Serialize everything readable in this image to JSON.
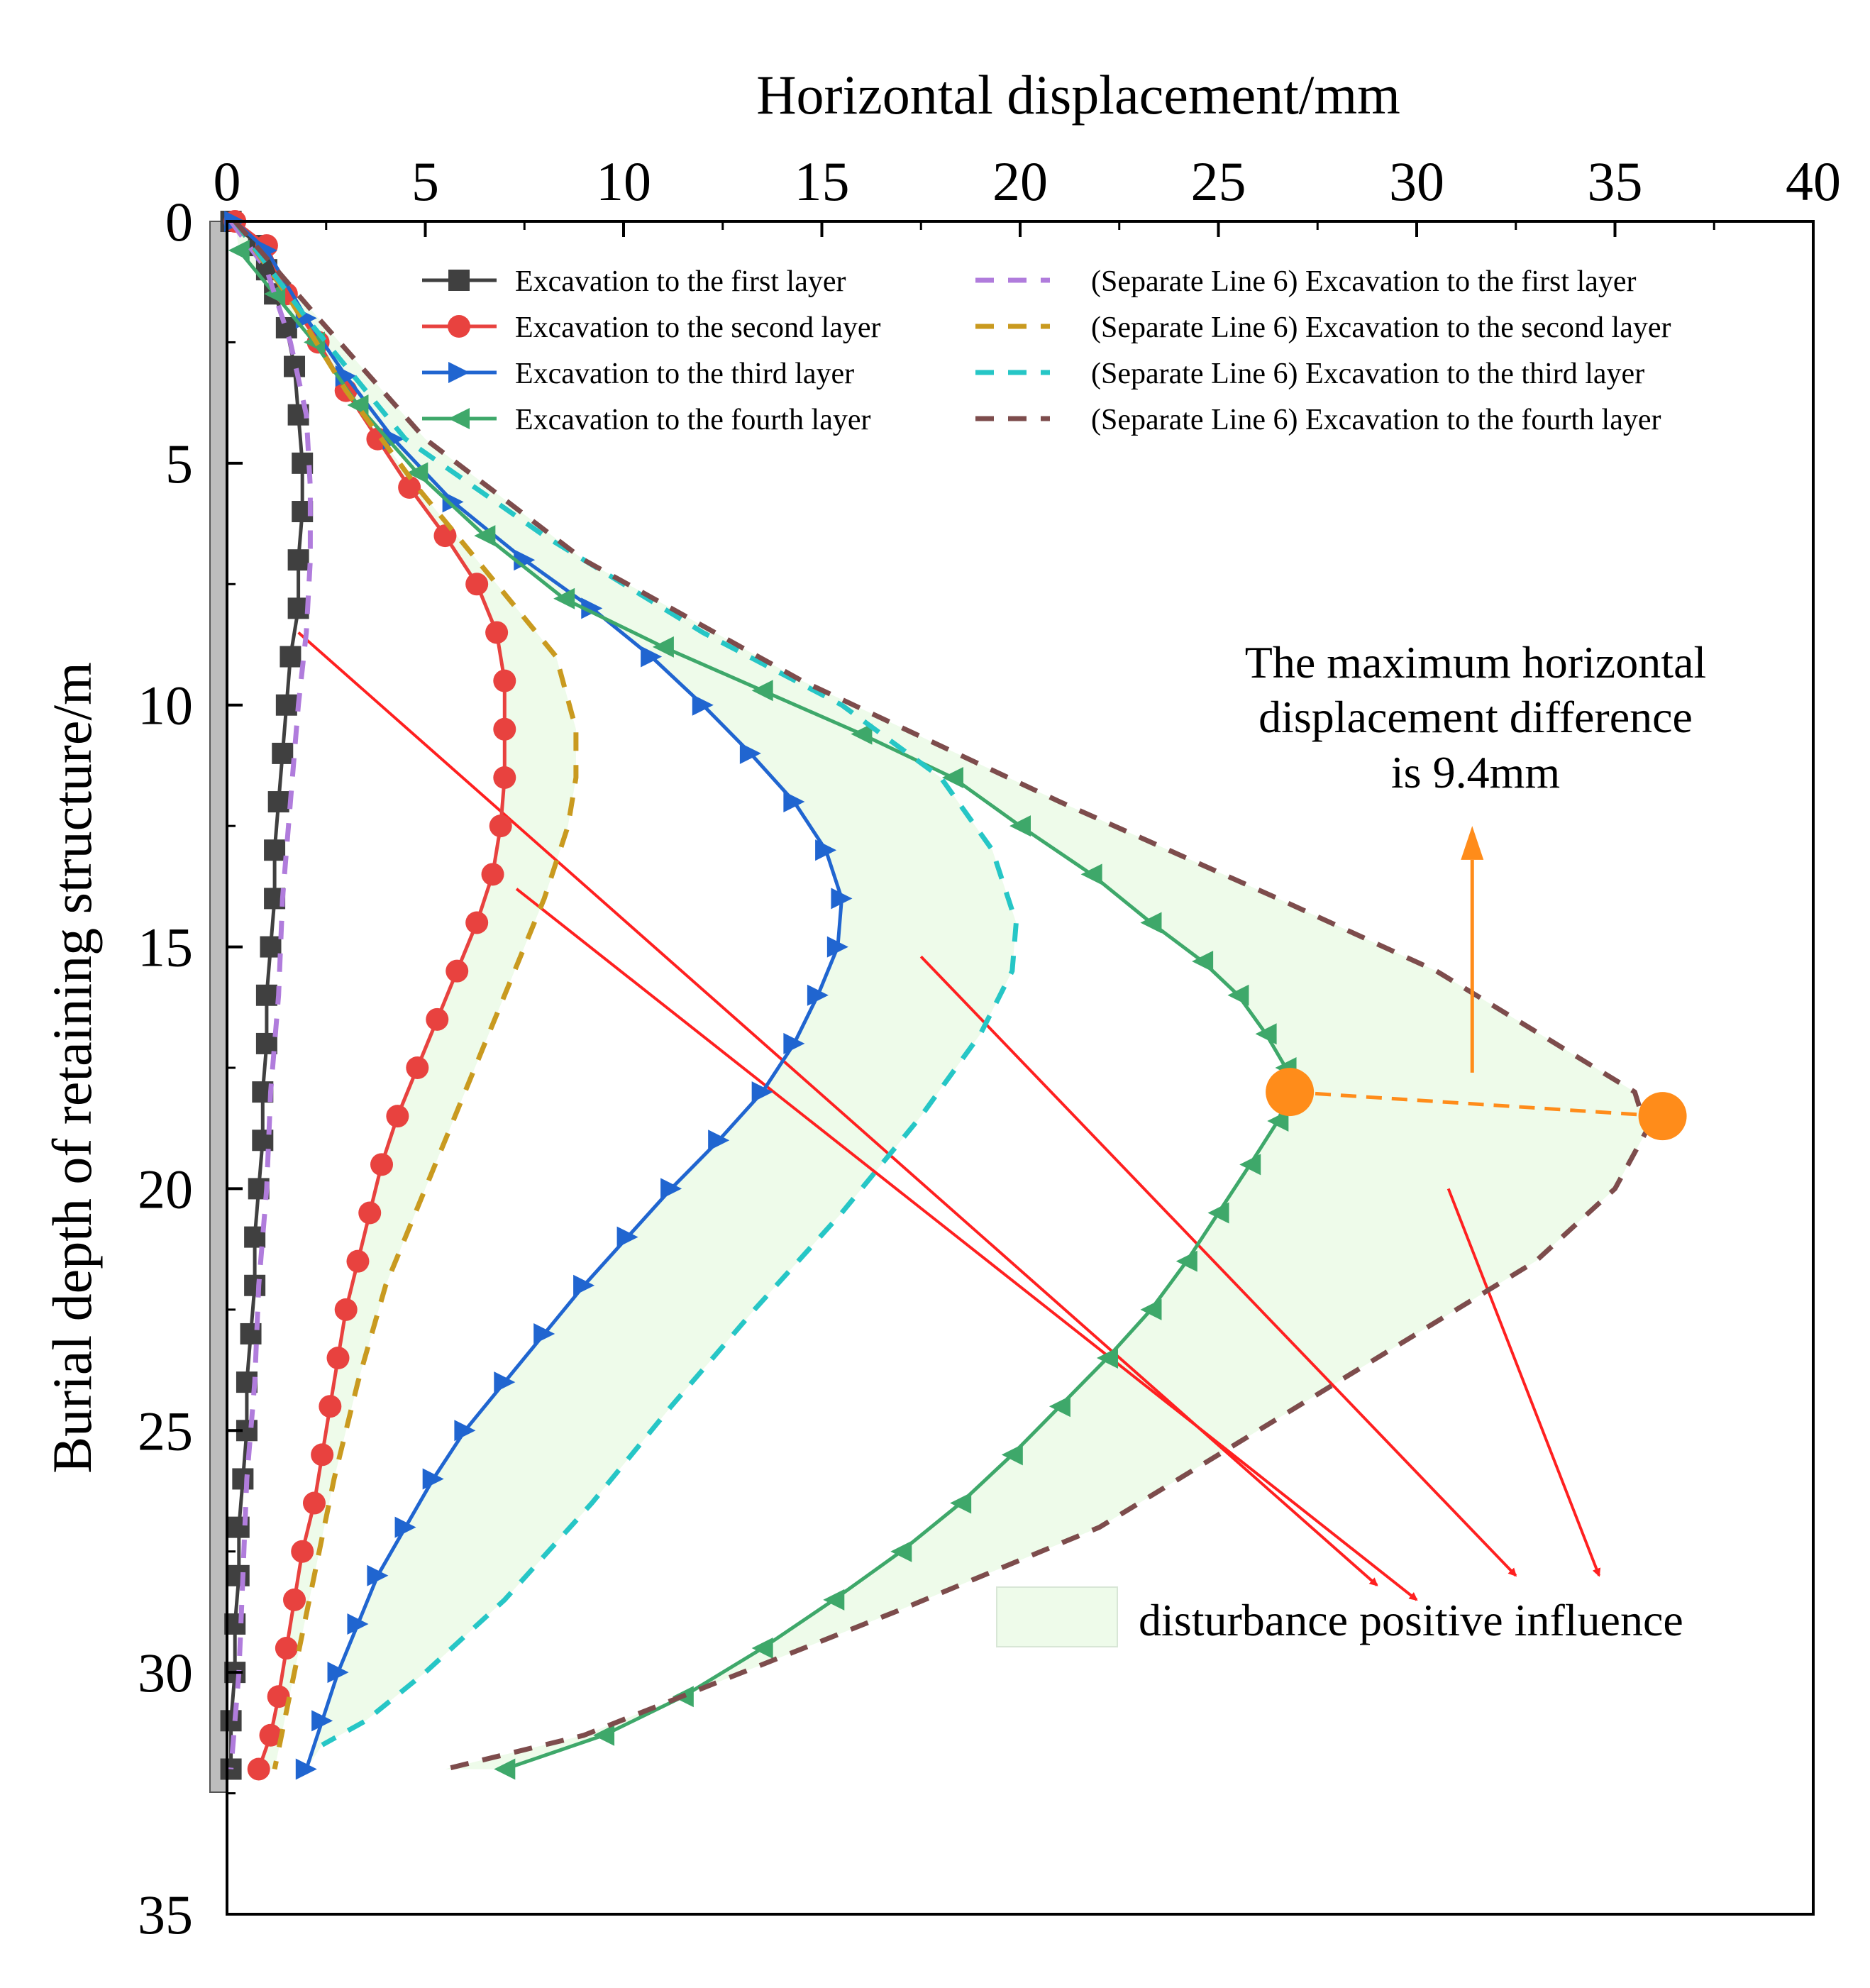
{
  "chart_data": {
    "type": "line",
    "title": "",
    "xlabel": "Horizontal displacement/mm",
    "ylabel": "Burial depth of retaining structure/m",
    "xlim": [
      0,
      40
    ],
    "ylim": [
      0,
      35
    ],
    "x_axis_position": "top",
    "y_axis_inverted": true,
    "xticks": [
      "0",
      "5",
      "10",
      "15",
      "20",
      "25",
      "30",
      "35",
      "40"
    ],
    "yticks": [
      "0",
      "5",
      "10",
      "15",
      "20",
      "25",
      "30",
      "35"
    ],
    "grid": false,
    "legend_position": "top",
    "series": [
      {
        "name": "Excavation to the first layer",
        "color": "#404040",
        "marker": "square",
        "line": "solid",
        "points": [
          [
            0.1,
            0
          ],
          [
            0.8,
            0.5
          ],
          [
            1.0,
            1.0
          ],
          [
            1.2,
            1.5
          ],
          [
            1.5,
            2.2
          ],
          [
            1.7,
            3.0
          ],
          [
            1.8,
            4.0
          ],
          [
            1.9,
            5.0
          ],
          [
            1.9,
            6.0
          ],
          [
            1.8,
            7.0
          ],
          [
            1.8,
            8.0
          ],
          [
            1.6,
            9.0
          ],
          [
            1.5,
            10.0
          ],
          [
            1.4,
            11.0
          ],
          [
            1.3,
            12.0
          ],
          [
            1.2,
            13.0
          ],
          [
            1.2,
            14.0
          ],
          [
            1.1,
            15.0
          ],
          [
            1.0,
            16.0
          ],
          [
            1.0,
            17.0
          ],
          [
            0.9,
            18.0
          ],
          [
            0.9,
            19.0
          ],
          [
            0.8,
            20.0
          ],
          [
            0.7,
            21.0
          ],
          [
            0.7,
            22.0
          ],
          [
            0.6,
            23.0
          ],
          [
            0.5,
            24.0
          ],
          [
            0.5,
            25.0
          ],
          [
            0.4,
            26.0
          ],
          [
            0.3,
            27.0
          ],
          [
            0.3,
            28.0
          ],
          [
            0.2,
            29.0
          ],
          [
            0.2,
            30.0
          ],
          [
            0.1,
            31.0
          ],
          [
            0.1,
            32.0
          ]
        ]
      },
      {
        "name": "Excavation to the second layer",
        "color": "#e8423f",
        "marker": "circle",
        "line": "solid",
        "points": [
          [
            0.2,
            0
          ],
          [
            1.0,
            0.5
          ],
          [
            1.5,
            1.5
          ],
          [
            2.3,
            2.5
          ],
          [
            3.0,
            3.5
          ],
          [
            3.8,
            4.5
          ],
          [
            4.6,
            5.5
          ],
          [
            5.5,
            6.5
          ],
          [
            6.3,
            7.5
          ],
          [
            6.8,
            8.5
          ],
          [
            7.0,
            9.5
          ],
          [
            7.0,
            10.5
          ],
          [
            7.0,
            11.5
          ],
          [
            6.9,
            12.5
          ],
          [
            6.7,
            13.5
          ],
          [
            6.3,
            14.5
          ],
          [
            5.8,
            15.5
          ],
          [
            5.3,
            16.5
          ],
          [
            4.8,
            17.5
          ],
          [
            4.3,
            18.5
          ],
          [
            3.9,
            19.5
          ],
          [
            3.6,
            20.5
          ],
          [
            3.3,
            21.5
          ],
          [
            3.0,
            22.5
          ],
          [
            2.8,
            23.5
          ],
          [
            2.6,
            24.5
          ],
          [
            2.4,
            25.5
          ],
          [
            2.2,
            26.5
          ],
          [
            1.9,
            27.5
          ],
          [
            1.7,
            28.5
          ],
          [
            1.5,
            29.5
          ],
          [
            1.3,
            30.5
          ],
          [
            1.1,
            31.3
          ],
          [
            0.8,
            32.0
          ]
        ]
      },
      {
        "name": "Excavation to the third layer",
        "color": "#2065d0",
        "marker": "triangle-right",
        "line": "solid",
        "points": [
          [
            0.2,
            0
          ],
          [
            1.0,
            0.6
          ],
          [
            2.0,
            2.0
          ],
          [
            3.0,
            3.2
          ],
          [
            4.2,
            4.5
          ],
          [
            5.7,
            5.8
          ],
          [
            7.5,
            7.0
          ],
          [
            9.2,
            8.0
          ],
          [
            10.7,
            9.0
          ],
          [
            12.0,
            10.0
          ],
          [
            13.2,
            11.0
          ],
          [
            14.3,
            12.0
          ],
          [
            15.1,
            13.0
          ],
          [
            15.5,
            14.0
          ],
          [
            15.4,
            15.0
          ],
          [
            14.9,
            16.0
          ],
          [
            14.3,
            17.0
          ],
          [
            13.5,
            18.0
          ],
          [
            12.4,
            19.0
          ],
          [
            11.2,
            20.0
          ],
          [
            10.1,
            21.0
          ],
          [
            9.0,
            22.0
          ],
          [
            8.0,
            23.0
          ],
          [
            7.0,
            24.0
          ],
          [
            6.0,
            25.0
          ],
          [
            5.2,
            26.0
          ],
          [
            4.5,
            27.0
          ],
          [
            3.8,
            28.0
          ],
          [
            3.3,
            29.0
          ],
          [
            2.8,
            30.0
          ],
          [
            2.4,
            31.0
          ],
          [
            2.0,
            32.0
          ]
        ]
      },
      {
        "name": "Excavation to the fourth layer",
        "color": "#3ea86a",
        "marker": "triangle-left",
        "line": "solid",
        "points": [
          [
            0.3,
            0.6
          ],
          [
            1.2,
            1.5
          ],
          [
            2.2,
            2.5
          ],
          [
            3.3,
            3.8
          ],
          [
            4.8,
            5.2
          ],
          [
            6.5,
            6.5
          ],
          [
            8.5,
            7.8
          ],
          [
            11.0,
            8.8
          ],
          [
            13.5,
            9.7
          ],
          [
            16.0,
            10.6
          ],
          [
            18.3,
            11.5
          ],
          [
            20.0,
            12.5
          ],
          [
            21.8,
            13.5
          ],
          [
            23.3,
            14.5
          ],
          [
            24.6,
            15.3
          ],
          [
            25.5,
            16.0
          ],
          [
            26.2,
            16.8
          ],
          [
            26.7,
            17.5
          ],
          [
            26.8,
            18.0
          ],
          [
            26.5,
            18.6
          ],
          [
            25.8,
            19.5
          ],
          [
            25.0,
            20.5
          ],
          [
            24.2,
            21.5
          ],
          [
            23.3,
            22.5
          ],
          [
            22.2,
            23.5
          ],
          [
            21.0,
            24.5
          ],
          [
            19.8,
            25.5
          ],
          [
            18.5,
            26.5
          ],
          [
            17.0,
            27.5
          ],
          [
            15.3,
            28.5
          ],
          [
            13.5,
            29.5
          ],
          [
            11.5,
            30.5
          ],
          [
            9.5,
            31.3
          ],
          [
            7.0,
            32.0
          ]
        ]
      },
      {
        "name": "(Separate Line 6) Excavation to the first layer",
        "color": "#b07cdc",
        "marker": "none",
        "line": "dashed",
        "points": [
          [
            0.1,
            0
          ],
          [
            1.0,
            1.0
          ],
          [
            1.6,
            2.5
          ],
          [
            2.0,
            4.0
          ],
          [
            2.1,
            5.5
          ],
          [
            2.1,
            7.0
          ],
          [
            2.0,
            8.5
          ],
          [
            1.8,
            10.0
          ],
          [
            1.6,
            12.0
          ],
          [
            1.4,
            14.0
          ],
          [
            1.3,
            16.0
          ],
          [
            1.1,
            18.0
          ],
          [
            1.0,
            20.0
          ],
          [
            0.8,
            22.0
          ],
          [
            0.7,
            24.0
          ],
          [
            0.5,
            26.0
          ],
          [
            0.4,
            28.0
          ],
          [
            0.3,
            30.0
          ],
          [
            0.1,
            32.0
          ]
        ]
      },
      {
        "name": "(Separate Line 6) Excavation to the second layer",
        "color": "#c99a1f",
        "marker": "none",
        "line": "dashed",
        "points": [
          [
            0.2,
            0
          ],
          [
            1.5,
            1.5
          ],
          [
            3.0,
            3.5
          ],
          [
            4.8,
            5.5
          ],
          [
            6.8,
            7.5
          ],
          [
            8.3,
            9.0
          ],
          [
            8.8,
            10.5
          ],
          [
            8.8,
            11.5
          ],
          [
            8.6,
            12.5
          ],
          [
            8.0,
            14.0
          ],
          [
            7.0,
            16.0
          ],
          [
            6.0,
            18.0
          ],
          [
            5.0,
            20.0
          ],
          [
            4.0,
            22.0
          ],
          [
            3.3,
            24.0
          ],
          [
            2.7,
            26.0
          ],
          [
            2.2,
            28.0
          ],
          [
            1.7,
            30.0
          ],
          [
            1.2,
            32.0
          ]
        ]
      },
      {
        "name": "(Separate Line 6) Excavation to the third layer",
        "color": "#26c6c6",
        "marker": "none",
        "line": "dashed",
        "points": [
          [
            0.2,
            0
          ],
          [
            2.0,
            2.0
          ],
          [
            4.5,
            4.5
          ],
          [
            8.0,
            6.5
          ],
          [
            12.0,
            8.5
          ],
          [
            15.5,
            10.0
          ],
          [
            18.0,
            11.5
          ],
          [
            19.3,
            13.0
          ],
          [
            19.9,
            14.5
          ],
          [
            19.8,
            15.5
          ],
          [
            19.0,
            16.8
          ],
          [
            17.5,
            18.5
          ],
          [
            15.5,
            20.5
          ],
          [
            13.3,
            22.5
          ],
          [
            11.2,
            24.5
          ],
          [
            9.2,
            26.5
          ],
          [
            7.0,
            28.5
          ],
          [
            5.0,
            30.0
          ],
          [
            3.5,
            31.0
          ],
          [
            2.4,
            31.5
          ]
        ]
      },
      {
        "name": "(Separate Line 6) Excavation to the fourth layer",
        "color": "#7d4c4c",
        "marker": "none",
        "line": "dashed",
        "points": [
          [
            0.2,
            0
          ],
          [
            2.3,
            2.0
          ],
          [
            5.0,
            4.5
          ],
          [
            9.0,
            7.0
          ],
          [
            14.5,
            9.5
          ],
          [
            21.0,
            12.0
          ],
          [
            26.5,
            14.0
          ],
          [
            30.5,
            15.5
          ],
          [
            33.5,
            17.0
          ],
          [
            35.5,
            18.0
          ],
          [
            35.8,
            18.8
          ],
          [
            35.0,
            20.0
          ],
          [
            33.0,
            21.5
          ],
          [
            30.0,
            23.0
          ],
          [
            26.0,
            25.0
          ],
          [
            22.0,
            27.0
          ],
          [
            17.0,
            28.7
          ],
          [
            13.0,
            30.0
          ],
          [
            9.0,
            31.3
          ],
          [
            5.5,
            32.0
          ]
        ]
      }
    ],
    "shaded_region": {
      "label": "disturbance positive influence",
      "color": "#eefbea"
    },
    "annotation": {
      "text": [
        "The maximum horizontal",
        "displacement difference",
        "is 9.4mm"
      ]
    },
    "max_difference_points": [
      [
        26.8,
        18.0
      ],
      [
        36.2,
        18.5
      ]
    ],
    "accent_colors": {
      "orange": "#ff8c1a",
      "arrow_red": "#ff2020"
    }
  }
}
